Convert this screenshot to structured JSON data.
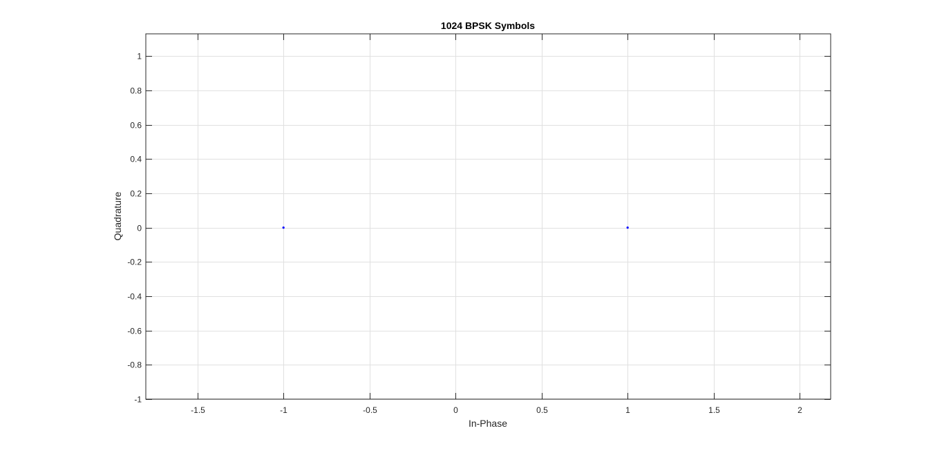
{
  "chart_data": {
    "type": "scatter",
    "title": "1024 BPSK Symbols",
    "xlabel": "In-Phase",
    "ylabel": "Quadrature",
    "xlim": [
      -1.8,
      2.18
    ],
    "ylim": [
      -1,
      1.13
    ],
    "xticks": [
      -1.5,
      -1,
      -0.5,
      0,
      0.5,
      1,
      1.5,
      2
    ],
    "xtick_labels": [
      "-1.5",
      "-1",
      "-0.5",
      "0",
      "0.5",
      "1",
      "1.5",
      "2"
    ],
    "yticks": [
      -1,
      -0.8,
      -0.6,
      -0.4,
      -0.2,
      0,
      0.2,
      0.4,
      0.6,
      0.8,
      1
    ],
    "ytick_labels": [
      "-1",
      "-0.8",
      "-0.6",
      "-0.4",
      "-0.2",
      "0",
      "0.2",
      "0.4",
      "0.6",
      "0.8",
      "1"
    ],
    "grid": true,
    "series": [
      {
        "color": "#0000ff",
        "points": [
          [
            -1,
            0
          ],
          [
            1,
            0
          ]
        ]
      }
    ]
  }
}
